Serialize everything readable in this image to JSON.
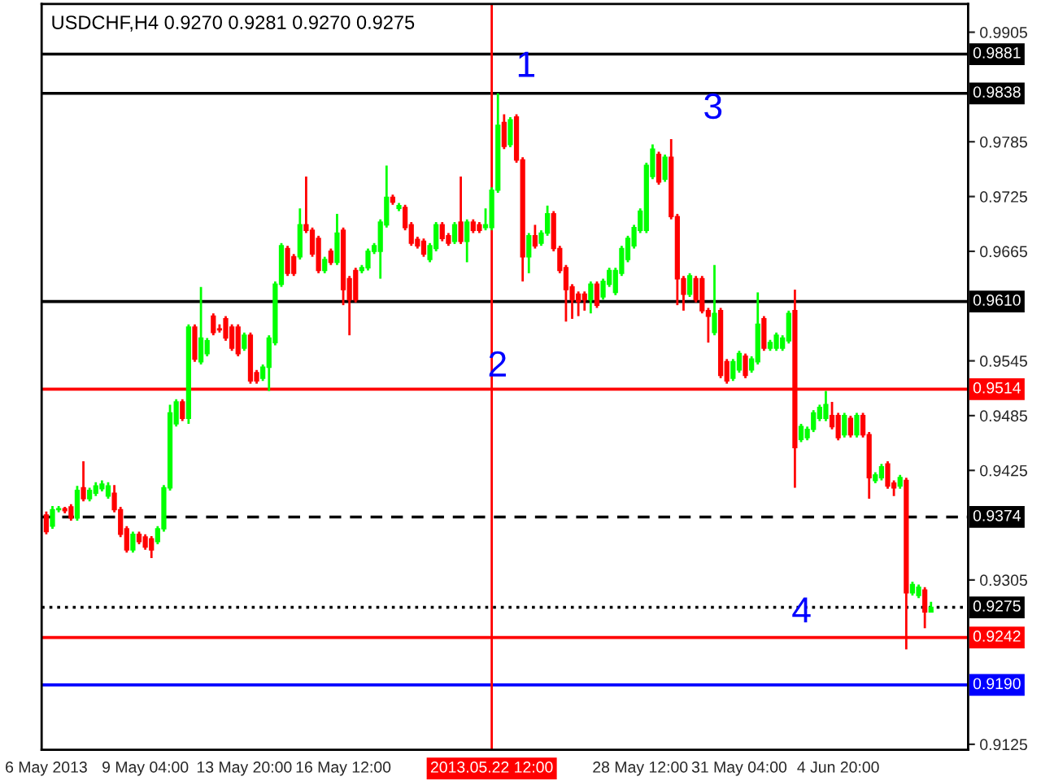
{
  "chart_data": {
    "type": "candlestick",
    "title": "USDCHF,H4 0.9270 0.9281 0.9270 0.9275",
    "categories": [
      "6 May 2013",
      null,
      null,
      null,
      null,
      null,
      null,
      null,
      null,
      null,
      null,
      null,
      null,
      null,
      null,
      null,
      "9 May 04:00",
      null,
      null,
      null,
      null,
      null,
      null,
      null,
      null,
      null,
      null,
      null,
      null,
      null,
      null,
      null,
      "13 May 20:00",
      null,
      null,
      null,
      null,
      null,
      null,
      null,
      null,
      null,
      null,
      null,
      null,
      null,
      null,
      null,
      "16 May 12:00",
      null,
      null,
      null,
      null,
      null,
      null,
      null,
      null,
      null,
      null,
      null,
      null,
      null,
      null,
      null,
      null,
      null,
      null,
      null,
      null,
      null,
      null,
      null,
      "2013.05.22 12:00",
      null,
      null,
      null,
      null,
      null,
      null,
      null,
      null,
      null,
      null,
      null,
      null,
      null,
      null,
      null,
      null,
      null,
      null,
      null,
      null,
      null,
      null,
      null,
      "28 May 12:00",
      null,
      null,
      null,
      null,
      null,
      null,
      null,
      null,
      null,
      null,
      null,
      null,
      null,
      null,
      null,
      "31 May 04:00",
      null,
      null,
      null,
      null,
      null,
      null,
      null,
      null,
      null,
      null,
      null,
      null,
      null,
      null,
      null,
      "4 Jun 20:00",
      null,
      null,
      null,
      null,
      null,
      null,
      null,
      null,
      null,
      null,
      null,
      null,
      null,
      null,
      null
    ],
    "ohlc": [
      [
        0.9376,
        0.938,
        0.9355,
        0.9358
      ],
      [
        0.9364,
        0.9386,
        0.9361,
        0.9382
      ],
      [
        0.9382,
        0.9386,
        0.9379,
        0.9383
      ],
      [
        0.9383,
        0.9385,
        0.9378,
        0.9381
      ],
      [
        0.9385,
        0.9388,
        0.937,
        0.9373
      ],
      [
        0.9373,
        0.9408,
        0.937,
        0.9403
      ],
      [
        0.9406,
        0.9435,
        0.9391,
        0.9394
      ],
      [
        0.9394,
        0.9406,
        0.9391,
        0.9403
      ],
      [
        0.94,
        0.9412,
        0.9397,
        0.9408
      ],
      [
        0.9405,
        0.9414,
        0.9402,
        0.941
      ],
      [
        0.9397,
        0.9412,
        0.9394,
        0.9408
      ],
      [
        0.94,
        0.9409,
        0.9379,
        0.9382
      ],
      [
        0.9382,
        0.9385,
        0.9352,
        0.9355
      ],
      [
        0.9361,
        0.9364,
        0.9335,
        0.9338
      ],
      [
        0.9338,
        0.9358,
        0.9335,
        0.9355
      ],
      [
        0.9355,
        0.9358,
        0.9344,
        0.9347
      ],
      [
        0.9352,
        0.9355,
        0.9338,
        0.9341
      ],
      [
        0.935,
        0.9353,
        0.9329,
        0.9338
      ],
      [
        0.9347,
        0.9364,
        0.9344,
        0.9361
      ],
      [
        0.9361,
        0.9409,
        0.9358,
        0.9406
      ],
      [
        0.9406,
        0.9497,
        0.9403,
        0.9488
      ],
      [
        0.9476,
        0.9503,
        0.9473,
        0.95
      ],
      [
        0.95,
        0.9503,
        0.9479,
        0.9482
      ],
      [
        0.9482,
        0.9585,
        0.9476,
        0.9582
      ],
      [
        0.9582,
        0.9585,
        0.9544,
        0.9547
      ],
      [
        0.9544,
        0.9626,
        0.9541,
        0.957
      ],
      [
        0.9553,
        0.957,
        0.955,
        0.9567
      ],
      [
        0.9594,
        0.9597,
        0.9573,
        0.9576
      ],
      [
        0.958,
        0.9585,
        0.9576,
        0.9579
      ],
      [
        0.9591,
        0.9594,
        0.9567,
        0.957
      ],
      [
        0.9582,
        0.9585,
        0.9556,
        0.9559
      ],
      [
        0.9582,
        0.9585,
        0.955,
        0.9553
      ],
      [
        0.9559,
        0.9576,
        0.9556,
        0.9573
      ],
      [
        0.9573,
        0.9576,
        0.952,
        0.9523
      ],
      [
        0.9532,
        0.9535,
        0.952,
        0.9523
      ],
      [
        0.9526,
        0.9541,
        0.9523,
        0.9538
      ],
      [
        0.9538,
        0.9573,
        0.9512,
        0.957
      ],
      [
        0.9565,
        0.9632,
        0.9562,
        0.9629
      ],
      [
        0.9629,
        0.9674,
        0.9626,
        0.9671
      ],
      [
        0.9668,
        0.9671,
        0.9638,
        0.9641
      ],
      [
        0.9659,
        0.9662,
        0.9638,
        0.9641
      ],
      [
        0.9659,
        0.9712,
        0.9656,
        0.9694
      ],
      [
        0.9694,
        0.9747,
        0.9685,
        0.9688
      ],
      [
        0.9688,
        0.9691,
        0.9659,
        0.9662
      ],
      [
        0.9679,
        0.9682,
        0.9641,
        0.9644
      ],
      [
        0.9644,
        0.9659,
        0.9641,
        0.9656
      ],
      [
        0.9665,
        0.9668,
        0.965,
        0.9653
      ],
      [
        0.9653,
        0.9706,
        0.965,
        0.9685
      ],
      [
        0.9688,
        0.9691,
        0.9606,
        0.9623
      ],
      [
        0.9635,
        0.9638,
        0.9573,
        0.9612
      ],
      [
        0.9644,
        0.9647,
        0.9609,
        0.9612
      ],
      [
        0.9644,
        0.965,
        0.9641,
        0.9647
      ],
      [
        0.9647,
        0.9668,
        0.9644,
        0.9665
      ],
      [
        0.9665,
        0.9674,
        0.9662,
        0.9671
      ],
      [
        0.9665,
        0.97,
        0.9635,
        0.9697
      ],
      [
        0.9694,
        0.9759,
        0.9691,
        0.9724
      ],
      [
        0.9724,
        0.9727,
        0.9716,
        0.9719
      ],
      [
        0.9712,
        0.9718,
        0.9709,
        0.9715
      ],
      [
        0.9713,
        0.9716,
        0.9688,
        0.9691
      ],
      [
        0.9694,
        0.9697,
        0.9671,
        0.9674
      ],
      [
        0.9678,
        0.9681,
        0.9668,
        0.9671
      ],
      [
        0.9676,
        0.9679,
        0.9659,
        0.9662
      ],
      [
        0.9656,
        0.9674,
        0.9653,
        0.9671
      ],
      [
        0.9668,
        0.9697,
        0.9665,
        0.9694
      ],
      [
        0.9694,
        0.9697,
        0.9676,
        0.9679
      ],
      [
        0.9682,
        0.9685,
        0.9671,
        0.9674
      ],
      [
        0.9676,
        0.9697,
        0.9673,
        0.9694
      ],
      [
        0.9697,
        0.9747,
        0.9673,
        0.9676
      ],
      [
        0.9676,
        0.97,
        0.9653,
        0.9697
      ],
      [
        0.9697,
        0.97,
        0.9685,
        0.9688
      ],
      [
        0.9694,
        0.9697,
        0.9685,
        0.9688
      ],
      [
        0.9691,
        0.9712,
        0.9688,
        0.9694
      ],
      [
        0.9691,
        0.9735,
        0.9688,
        0.9732
      ],
      [
        0.9732,
        0.9838,
        0.9729,
        0.9803
      ],
      [
        0.9806,
        0.9815,
        0.9777,
        0.978
      ],
      [
        0.9782,
        0.9812,
        0.9779,
        0.9809
      ],
      [
        0.9812,
        0.9815,
        0.9762,
        0.9765
      ],
      [
        0.9765,
        0.9768,
        0.9632,
        0.9659
      ],
      [
        0.9659,
        0.9685,
        0.9641,
        0.9682
      ],
      [
        0.9682,
        0.9694,
        0.9668,
        0.9671
      ],
      [
        0.9674,
        0.9688,
        0.9671,
        0.9685
      ],
      [
        0.9685,
        0.9715,
        0.9682,
        0.9706
      ],
      [
        0.9706,
        0.9709,
        0.9665,
        0.9668
      ],
      [
        0.9668,
        0.9671,
        0.9641,
        0.9644
      ],
      [
        0.9647,
        0.965,
        0.9588,
        0.9623
      ],
      [
        0.9626,
        0.9629,
        0.9591,
        0.9612
      ],
      [
        0.9618,
        0.9621,
        0.9594,
        0.961
      ],
      [
        0.9618,
        0.9621,
        0.96,
        0.9612
      ],
      [
        0.9612,
        0.9632,
        0.9597,
        0.9629
      ],
      [
        0.9629,
        0.9632,
        0.9603,
        0.9606
      ],
      [
        0.9615,
        0.9635,
        0.9612,
        0.9632
      ],
      [
        0.9629,
        0.9647,
        0.9626,
        0.9644
      ],
      [
        0.962,
        0.9647,
        0.9617,
        0.9644
      ],
      [
        0.9641,
        0.9671,
        0.9638,
        0.9668
      ],
      [
        0.9656,
        0.9682,
        0.9653,
        0.9679
      ],
      [
        0.9671,
        0.9694,
        0.9668,
        0.9691
      ],
      [
        0.9688,
        0.9712,
        0.9685,
        0.9709
      ],
      [
        0.9688,
        0.9762,
        0.9685,
        0.9759
      ],
      [
        0.9747,
        0.9782,
        0.9744,
        0.9777
      ],
      [
        0.9771,
        0.9774,
        0.9738,
        0.9741
      ],
      [
        0.9744,
        0.9771,
        0.9741,
        0.9768
      ],
      [
        0.9768,
        0.9788,
        0.97,
        0.9703
      ],
      [
        0.9703,
        0.9706,
        0.9606,
        0.9635
      ],
      [
        0.9635,
        0.9638,
        0.96,
        0.9618
      ],
      [
        0.9618,
        0.9641,
        0.9615,
        0.9638
      ],
      [
        0.9635,
        0.9638,
        0.9609,
        0.9612
      ],
      [
        0.9635,
        0.9638,
        0.9597,
        0.96
      ],
      [
        0.96,
        0.9603,
        0.9565,
        0.9594
      ],
      [
        0.9576,
        0.965,
        0.9573,
        0.9597
      ],
      [
        0.96,
        0.9603,
        0.9526,
        0.9529
      ],
      [
        0.9544,
        0.9547,
        0.952,
        0.9523
      ],
      [
        0.9526,
        0.9547,
        0.9523,
        0.9544
      ],
      [
        0.9535,
        0.9556,
        0.9532,
        0.9553
      ],
      [
        0.955,
        0.9553,
        0.9526,
        0.9529
      ],
      [
        0.9535,
        0.955,
        0.9532,
        0.9547
      ],
      [
        0.9544,
        0.962,
        0.9541,
        0.9585
      ],
      [
        0.9591,
        0.9594,
        0.9556,
        0.9559
      ],
      [
        0.9559,
        0.9568,
        0.9556,
        0.9565
      ],
      [
        0.9559,
        0.9576,
        0.9556,
        0.9573
      ],
      [
        0.9559,
        0.9573,
        0.9556,
        0.957
      ],
      [
        0.9567,
        0.96,
        0.9564,
        0.9597
      ],
      [
        0.96,
        0.9623,
        0.9406,
        0.945
      ],
      [
        0.9459,
        0.9476,
        0.9456,
        0.9473
      ],
      [
        0.9461,
        0.9473,
        0.9458,
        0.947
      ],
      [
        0.947,
        0.9491,
        0.9467,
        0.9488
      ],
      [
        0.9482,
        0.9497,
        0.9479,
        0.9494
      ],
      [
        0.9482,
        0.9512,
        0.9479,
        0.9497
      ],
      [
        0.9485,
        0.95,
        0.947,
        0.9473
      ],
      [
        0.9485,
        0.9488,
        0.9458,
        0.9461
      ],
      [
        0.9464,
        0.9488,
        0.9461,
        0.9485
      ],
      [
        0.9482,
        0.9485,
        0.9461,
        0.9464
      ],
      [
        0.9464,
        0.9488,
        0.9461,
        0.9485
      ],
      [
        0.9485,
        0.9488,
        0.9461,
        0.9464
      ],
      [
        0.9464,
        0.9467,
        0.9394,
        0.9417
      ],
      [
        0.9414,
        0.9423,
        0.9411,
        0.942
      ],
      [
        0.9417,
        0.9432,
        0.9414,
        0.9429
      ],
      [
        0.9432,
        0.9435,
        0.9405,
        0.9408
      ],
      [
        0.9411,
        0.9414,
        0.9397,
        0.9406
      ],
      [
        0.9408,
        0.942,
        0.9405,
        0.9417
      ],
      [
        0.9414,
        0.9417,
        0.9229,
        0.9291
      ],
      [
        0.9291,
        0.9303,
        0.9288,
        0.93
      ],
      [
        0.9288,
        0.93,
        0.9285,
        0.9297
      ],
      [
        0.9294,
        0.9297,
        0.9252,
        0.927
      ],
      [
        0.927,
        0.9281,
        0.927,
        0.9275
      ]
    ],
    "colors": [
      "#ff0000",
      "#00ff00",
      "#00ff00",
      "#ff0000",
      "#ff0000",
      "#00ff00",
      "#ff0000",
      "#00ff00",
      "#00ff00",
      "#00ff00",
      "#00ff00",
      "#ff0000",
      "#ff0000",
      "#ff0000",
      "#00ff00",
      "#ff0000",
      "#ff0000",
      "#ff0000",
      "#00ff00",
      "#00ff00",
      "#00ff00",
      "#00ff00",
      "#ff0000",
      "#00ff00",
      "#ff0000",
      "#00ff00",
      "#00ff00",
      "#ff0000",
      "#ff0000",
      "#ff0000",
      "#ff0000",
      "#ff0000",
      "#00ff00",
      "#ff0000",
      "#ff0000",
      "#00ff00",
      "#00ff00",
      "#00ff00",
      "#00ff00",
      "#ff0000",
      "#ff0000",
      "#00ff00",
      "#ff0000",
      "#ff0000",
      "#ff0000",
      "#00ff00",
      "#ff0000",
      "#00ff00",
      "#ff0000",
      "#ff0000",
      "#ff0000",
      "#00ff00",
      "#00ff00",
      "#00ff00",
      "#00ff00",
      "#00ff00",
      "#ff0000",
      "#00ff00",
      "#ff0000",
      "#ff0000",
      "#ff0000",
      "#ff0000",
      "#00ff00",
      "#00ff00",
      "#ff0000",
      "#ff0000",
      "#00ff00",
      "#ff0000",
      "#00ff00",
      "#ff0000",
      "#ff0000",
      "#00ff00",
      "#00ff00",
      "#00ff00",
      "#ff0000",
      "#00ff00",
      "#ff0000",
      "#ff0000",
      "#00ff00",
      "#ff0000",
      "#00ff00",
      "#00ff00",
      "#ff0000",
      "#ff0000",
      "#ff0000",
      "#ff0000",
      "#ff0000",
      "#ff0000",
      "#00ff00",
      "#ff0000",
      "#00ff00",
      "#00ff00",
      "#00ff00",
      "#00ff00",
      "#00ff00",
      "#00ff00",
      "#00ff00",
      "#00ff00",
      "#00ff00",
      "#ff0000",
      "#00ff00",
      "#ff0000",
      "#ff0000",
      "#ff0000",
      "#00ff00",
      "#ff0000",
      "#ff0000",
      "#ff0000",
      "#00ff00",
      "#ff0000",
      "#ff0000",
      "#00ff00",
      "#00ff00",
      "#ff0000",
      "#00ff00",
      "#00ff00",
      "#ff0000",
      "#00ff00",
      "#00ff00",
      "#00ff00",
      "#00ff00",
      "#ff0000",
      "#00ff00",
      "#00ff00",
      "#00ff00",
      "#00ff00",
      "#00ff00",
      "#ff0000",
      "#ff0000",
      "#00ff00",
      "#ff0000",
      "#00ff00",
      "#ff0000",
      "#ff0000",
      "#00ff00",
      "#00ff00",
      "#ff0000",
      "#ff0000",
      "#00ff00",
      "#ff0000",
      "#00ff00",
      "#00ff00",
      "#ff0000",
      "#00ff00"
    ],
    "ylim": [
      0.9119,
      0.9936
    ],
    "yticks": [
      0.9905,
      0.9785,
      0.9725,
      0.9665,
      0.9545,
      0.9485,
      0.9425,
      0.9305,
      0.9125
    ],
    "ref_lines": [
      {
        "axis": "y",
        "value": 0.9881,
        "label": "0.9881",
        "color": "#000000",
        "line_style": "solid"
      },
      {
        "axis": "y",
        "value": 0.9838,
        "label": "0.9838",
        "color": "#000000",
        "line_style": "solid"
      },
      {
        "axis": "y",
        "value": 0.961,
        "label": "0.9610",
        "color": "#000000",
        "line_style": "solid"
      },
      {
        "axis": "y",
        "value": 0.9514,
        "label": "0.9514",
        "color": "#ff0000",
        "line_style": "solid"
      },
      {
        "axis": "y",
        "value": 0.9374,
        "label": "0.9374",
        "color": "#000000",
        "line_style": "dashed"
      },
      {
        "axis": "y",
        "value": 0.9275,
        "label": "0.9275",
        "color": "#000000",
        "line_style": "dotted"
      },
      {
        "axis": "y",
        "value": 0.9242,
        "label": "0.9242",
        "color": "#ff0000",
        "line_style": "solid"
      },
      {
        "axis": "y",
        "value": 0.919,
        "label": "0.9190",
        "color": "#0000ff",
        "line_style": "solid"
      },
      {
        "axis": "x",
        "value": "2013.05.22 12:00",
        "color": "#ff0000",
        "line_style": "solid"
      }
    ],
    "annotations": [
      {
        "text": "1",
        "y": 0.9838
      },
      "2",
      "3",
      "4"
    ],
    "grid": false
  }
}
